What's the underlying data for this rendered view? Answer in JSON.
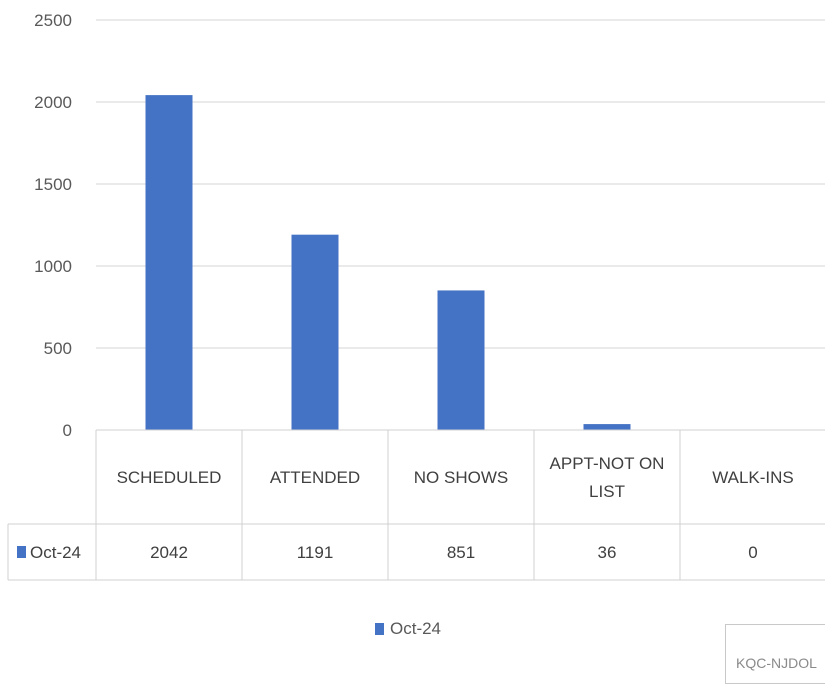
{
  "chart_data": {
    "type": "bar",
    "categories": [
      "SCHEDULED",
      "ATTENDED",
      "NO SHOWS",
      "APPT-NOT ON LIST",
      "WALK-INS"
    ],
    "category_lines": [
      [
        "SCHEDULED"
      ],
      [
        "ATTENDED"
      ],
      [
        "NO SHOWS"
      ],
      [
        "APPT-NOT ON",
        "LIST"
      ],
      [
        "WALK-INS"
      ]
    ],
    "series": [
      {
        "name": "Oct-24",
        "values": [
          2042,
          1191,
          851,
          36,
          0
        ],
        "color": "#4472c4"
      }
    ],
    "y_ticks": [
      "0",
      "500",
      "1000",
      "1500",
      "2000",
      "2500"
    ],
    "ylim": [
      0,
      2500
    ],
    "title": "",
    "xlabel": "",
    "ylabel": "",
    "grid": true,
    "legend_position": "bottom",
    "data_table": true
  },
  "table": {
    "row_label": "Oct-24",
    "values": [
      "2042",
      "1191",
      "851",
      "36",
      "0"
    ]
  },
  "legend": {
    "label": "Oct-24"
  },
  "footer": {
    "text": "KQC-NJDOL"
  }
}
